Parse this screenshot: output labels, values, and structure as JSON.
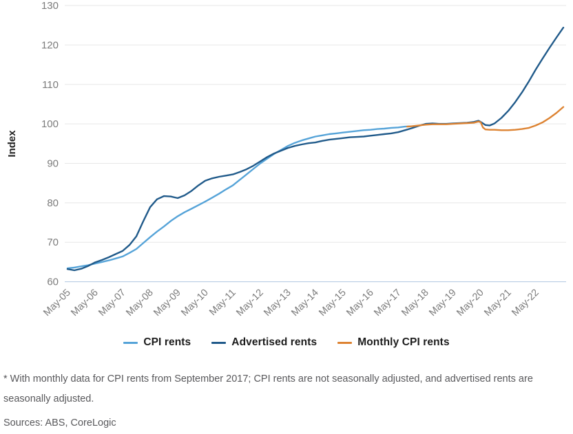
{
  "chart_data": {
    "type": "line",
    "title": "",
    "ylabel": "Index",
    "ylim": [
      60,
      130
    ],
    "y_ticks": [
      60,
      70,
      80,
      90,
      100,
      110,
      120,
      130
    ],
    "x_tick_labels": [
      "May-05",
      "May-06",
      "May-07",
      "May-08",
      "May-09",
      "May-10",
      "May-11",
      "May-12",
      "May-13",
      "May-14",
      "May-15",
      "May-16",
      "May-17",
      "May-18",
      "May-19",
      "May-20",
      "May-21",
      "May-22"
    ],
    "x_unit": "years since May-2005",
    "grid": "horizontal-only",
    "legend_position": "bottom",
    "grid_color": "#e7e7e7",
    "baseline_color": "#aec6e0",
    "tick_label_color": "#7b7b7b",
    "series": [
      {
        "name": "CPI rents",
        "color": "#55a3d8",
        "points": [
          [
            0,
            63.4
          ],
          [
            0.25,
            63.6
          ],
          [
            0.5,
            63.9
          ],
          [
            0.75,
            64.2
          ],
          [
            1,
            64.6
          ],
          [
            1.25,
            65
          ],
          [
            1.5,
            65.4
          ],
          [
            1.75,
            65.9
          ],
          [
            2,
            66.4
          ],
          [
            2.25,
            67.3
          ],
          [
            2.5,
            68.3
          ],
          [
            2.75,
            69.8
          ],
          [
            3,
            71.3
          ],
          [
            3.25,
            72.7
          ],
          [
            3.5,
            74
          ],
          [
            3.75,
            75.4
          ],
          [
            4,
            76.6
          ],
          [
            4.25,
            77.6
          ],
          [
            4.5,
            78.5
          ],
          [
            4.75,
            79.4
          ],
          [
            5,
            80.3
          ],
          [
            5.25,
            81.3
          ],
          [
            5.5,
            82.3
          ],
          [
            5.75,
            83.4
          ],
          [
            6,
            84.4
          ],
          [
            6.25,
            85.8
          ],
          [
            6.5,
            87.2
          ],
          [
            6.75,
            88.6
          ],
          [
            7,
            90
          ],
          [
            7.25,
            91.2
          ],
          [
            7.5,
            92.4
          ],
          [
            7.75,
            93.4
          ],
          [
            8,
            94.4
          ],
          [
            8.25,
            95.2
          ],
          [
            8.5,
            95.8
          ],
          [
            8.75,
            96.3
          ],
          [
            9,
            96.8
          ],
          [
            9.25,
            97.1
          ],
          [
            9.5,
            97.4
          ],
          [
            9.75,
            97.6
          ],
          [
            10,
            97.8
          ],
          [
            10.25,
            98
          ],
          [
            10.5,
            98.2
          ],
          [
            10.75,
            98.4
          ],
          [
            11,
            98.5
          ],
          [
            11.25,
            98.7
          ],
          [
            11.5,
            98.8
          ],
          [
            11.75,
            99
          ],
          [
            12,
            99.1
          ],
          [
            12.25,
            99.3
          ],
          [
            12.5,
            99.4
          ]
        ]
      },
      {
        "name": "Advertised rents",
        "color": "#205a8a",
        "points": [
          [
            0,
            63.2
          ],
          [
            0.25,
            62.9
          ],
          [
            0.5,
            63.3
          ],
          [
            0.75,
            64
          ],
          [
            1,
            64.9
          ],
          [
            1.25,
            65.5
          ],
          [
            1.5,
            66.2
          ],
          [
            1.75,
            67
          ],
          [
            2,
            67.8
          ],
          [
            2.25,
            69.3
          ],
          [
            2.5,
            71.5
          ],
          [
            2.75,
            75.3
          ],
          [
            3,
            78.9
          ],
          [
            3.25,
            80.9
          ],
          [
            3.5,
            81.7
          ],
          [
            3.75,
            81.6
          ],
          [
            4,
            81.2
          ],
          [
            4.25,
            81.9
          ],
          [
            4.5,
            83
          ],
          [
            4.75,
            84.4
          ],
          [
            5,
            85.6
          ],
          [
            5.25,
            86.2
          ],
          [
            5.5,
            86.6
          ],
          [
            5.75,
            86.9
          ],
          [
            6,
            87.2
          ],
          [
            6.25,
            87.8
          ],
          [
            6.5,
            88.5
          ],
          [
            6.75,
            89.4
          ],
          [
            7,
            90.5
          ],
          [
            7.25,
            91.6
          ],
          [
            7.5,
            92.5
          ],
          [
            7.75,
            93.2
          ],
          [
            8,
            93.9
          ],
          [
            8.25,
            94.4
          ],
          [
            8.5,
            94.8
          ],
          [
            8.75,
            95.1
          ],
          [
            9,
            95.3
          ],
          [
            9.25,
            95.7
          ],
          [
            9.5,
            96
          ],
          [
            9.75,
            96.2
          ],
          [
            10,
            96.4
          ],
          [
            10.25,
            96.6
          ],
          [
            10.5,
            96.7
          ],
          [
            10.75,
            96.8
          ],
          [
            11,
            97
          ],
          [
            11.25,
            97.2
          ],
          [
            11.5,
            97.4
          ],
          [
            11.75,
            97.6
          ],
          [
            12,
            97.9
          ],
          [
            12.25,
            98.4
          ],
          [
            12.5,
            98.9
          ],
          [
            12.75,
            99.5
          ],
          [
            13,
            100
          ],
          [
            13.25,
            100.1
          ],
          [
            13.5,
            100
          ],
          [
            13.75,
            100
          ],
          [
            14,
            100.1
          ],
          [
            14.25,
            100.2
          ],
          [
            14.5,
            100.3
          ],
          [
            14.75,
            100.5
          ],
          [
            14.92,
            100.8
          ],
          [
            15,
            100.5
          ],
          [
            15.17,
            99.7
          ],
          [
            15.33,
            99.6
          ],
          [
            15.5,
            100.1
          ],
          [
            15.75,
            101.5
          ],
          [
            16,
            103.3
          ],
          [
            16.25,
            105.5
          ],
          [
            16.5,
            108
          ],
          [
            16.75,
            110.8
          ],
          [
            17,
            113.8
          ],
          [
            17.25,
            116.6
          ],
          [
            17.5,
            119.3
          ],
          [
            17.75,
            121.9
          ],
          [
            18,
            124.4
          ]
        ]
      },
      {
        "name": "Monthly CPI rents",
        "color": "#dd8332",
        "points": [
          [
            12.33,
            99.3
          ],
          [
            12.5,
            99.4
          ],
          [
            12.75,
            99.6
          ],
          [
            13,
            99.8
          ],
          [
            13.25,
            99.9
          ],
          [
            13.5,
            99.9
          ],
          [
            13.75,
            99.9
          ],
          [
            14,
            100
          ],
          [
            14.25,
            100.1
          ],
          [
            14.5,
            100.2
          ],
          [
            14.75,
            100.3
          ],
          [
            14.92,
            100.6
          ],
          [
            15,
            100.4
          ],
          [
            15.08,
            99.1
          ],
          [
            15.17,
            98.6
          ],
          [
            15.33,
            98.5
          ],
          [
            15.5,
            98.5
          ],
          [
            15.75,
            98.4
          ],
          [
            16,
            98.4
          ],
          [
            16.25,
            98.5
          ],
          [
            16.5,
            98.7
          ],
          [
            16.75,
            99
          ],
          [
            17,
            99.6
          ],
          [
            17.25,
            100.4
          ],
          [
            17.5,
            101.5
          ],
          [
            17.75,
            102.8
          ],
          [
            18,
            104.3
          ]
        ]
      }
    ]
  },
  "legend": {
    "items": [
      "CPI rents",
      "Advertised rents",
      "Monthly CPI rents"
    ]
  },
  "footnote": "* With monthly data for CPI rents from September 2017; CPI rents are not seasonally adjusted, and advertised rents are seasonally adjusted.",
  "sources": "Sources: ABS, CoreLogic"
}
